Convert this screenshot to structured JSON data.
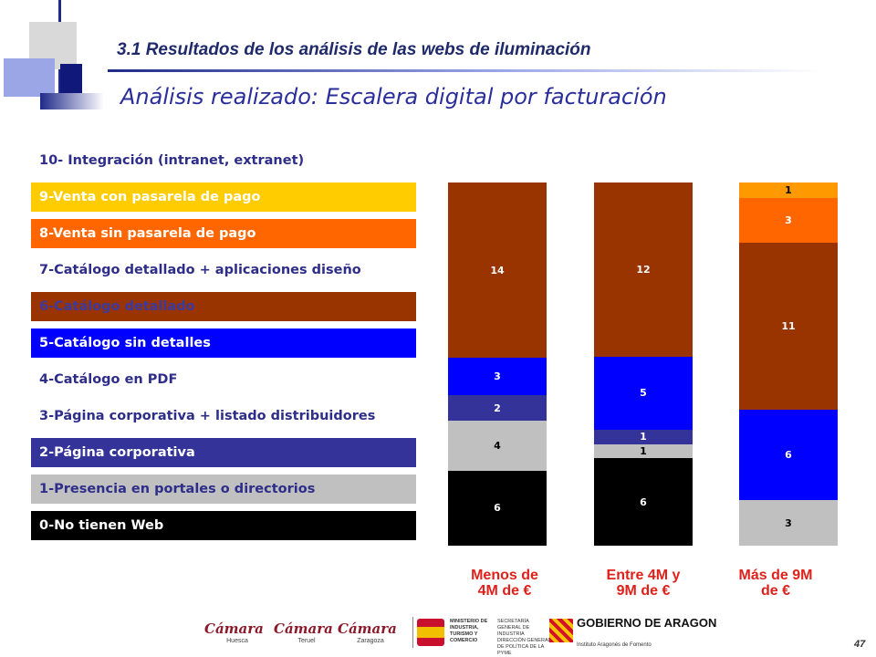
{
  "header": {
    "section_title": "3.1 Resultados de  los análisis de las webs de iluminación",
    "slide_title": "Análisis realizado: Escalera digital por facturación"
  },
  "legend": [
    {
      "label": "10- Integración (intranet, extranet)",
      "bg": "#ffffff",
      "fg": "#2e2e8a"
    },
    {
      "label": "9-Venta con pasarela de pago",
      "bg": "#ffcc00",
      "fg": "#ffffff"
    },
    {
      "label": "8-Venta sin pasarela de pago",
      "bg": "#ff6600",
      "fg": "#ffffff"
    },
    {
      "label": "7-Catálogo detallado + aplicaciones diseño",
      "bg": "#ffffff",
      "fg": "#2e2e8a"
    },
    {
      "label": "6-Catálogo detallado",
      "bg": "#993300",
      "fg": "#3a3aa0"
    },
    {
      "label": "5-Catálogo sin detalles",
      "bg": "#0000ff",
      "fg": "#ffffff"
    },
    {
      "label": "4-Catálogo en PDF",
      "bg": "#ffffff",
      "fg": "#2e2e8a"
    },
    {
      "label": "3-Página corporativa + listado distribuidores",
      "bg": "#ffffff",
      "fg": "#2e2e8a"
    },
    {
      "label": "2-Página corporativa",
      "bg": "#333399",
      "fg": "#ffffff"
    },
    {
      "label": "1-Presencia en portales o directorios",
      "bg": "#c0c0c0",
      "fg": "#2e2e8a"
    },
    {
      "label": "0-No tienen Web",
      "bg": "#000000",
      "fg": "#ffffff"
    }
  ],
  "chart_data": {
    "type": "bar",
    "stacked": true,
    "normalized_100_percent": true,
    "categories": [
      "Menos de\n4M de €",
      "Entre 4M y\n9M de €",
      "Más de 9M\nde €"
    ],
    "series": [
      {
        "name": "0-No tienen Web",
        "color": "#000000",
        "label_color": "#ffffff",
        "values": [
          6,
          6,
          0
        ]
      },
      {
        "name": "1-Presencia en portales o directorios",
        "color": "#c0c0c0",
        "label_color": "#000000",
        "values": [
          4,
          1,
          3
        ]
      },
      {
        "name": "2-Página corporativa",
        "color": "#333399",
        "label_color": "#ffffff",
        "values": [
          2,
          1,
          0
        ]
      },
      {
        "name": "5-Catálogo sin detalles",
        "color": "#0000ff",
        "label_color": "#ffffff",
        "values": [
          3,
          5,
          6
        ]
      },
      {
        "name": "6-Catálogo detallado",
        "color": "#993300",
        "label_color": "#ffffff",
        "values": [
          14,
          12,
          11
        ]
      },
      {
        "name": "8-Venta sin pasarela de pago",
        "color": "#ff6600",
        "label_color": "#ffffff",
        "values": [
          0,
          0,
          3
        ]
      },
      {
        "name": "9-Venta con pasarela de pago",
        "color": "#ff9900",
        "label_color": "#000000",
        "values": [
          0,
          0,
          1
        ]
      }
    ]
  },
  "footer": {
    "camara_logos": [
      {
        "name": "Cámara",
        "city": "Huesca"
      },
      {
        "name": "Cámara",
        "city": "Teruel"
      },
      {
        "name": "Cámara",
        "city": "Zaragoza"
      }
    ],
    "ministerio_line1": "MINISTERIO DE INDUSTRIA, TURISMO Y COMERCIO",
    "ministerio_line2": "SECRETARÍA GENERAL DE INDUSTRIA DIRECCIÓN GENERAL DE POLÍTICA DE LA PYME",
    "gobierno_title": "GOBIERNO DE ARAGON",
    "gobierno_sub": "Instituto Aragonés de Fomento",
    "page_number": "47"
  }
}
